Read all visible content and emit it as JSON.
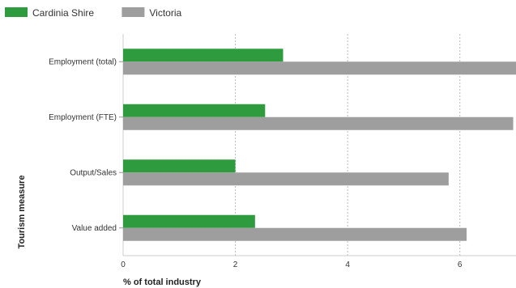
{
  "chart_data": {
    "type": "bar",
    "orientation": "horizontal",
    "categories": [
      "Employment (total)",
      "Employment (FTE)",
      "Output/Sales",
      "Value added"
    ],
    "series": [
      {
        "name": "Cardinia Shire",
        "color": "#2e9b3e",
        "values": [
          2.85,
          2.53,
          2.0,
          2.35
        ]
      },
      {
        "name": "Victoria",
        "color": "#9e9e9e",
        "values": [
          7.0,
          6.95,
          5.8,
          6.12
        ]
      }
    ],
    "xlabel": "% of total industry",
    "ylabel": "Tourism measure",
    "xlim": [
      0,
      7
    ],
    "xticks": [
      0,
      2,
      4,
      6
    ],
    "grid": "vertical-dotted",
    "legend_position": "top-left"
  }
}
